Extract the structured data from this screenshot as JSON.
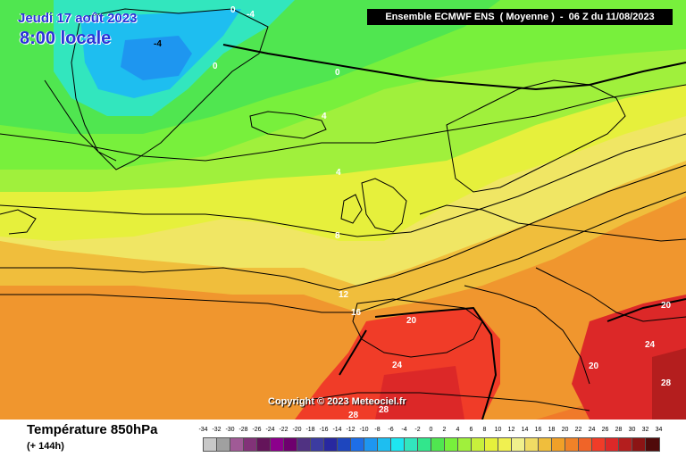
{
  "header": {
    "date_text": "Jeudi 17 août 2023",
    "time_text": "8:00 locale",
    "model_text": "Ensemble ECMWF ENS  ( Moyenne )  -  06 Z du 11/08/2023"
  },
  "map": {
    "copyright_text": "Copyright © 2023 Meteociel.fr",
    "isotherm_labels": [
      {
        "text": "0"
      },
      {
        "text": "0"
      },
      {
        "text": "0"
      },
      {
        "text": "-4"
      },
      {
        "text": "-4"
      },
      {
        "text": "4"
      },
      {
        "text": "4"
      },
      {
        "text": "8"
      },
      {
        "text": "12"
      },
      {
        "text": "16"
      },
      {
        "text": "20"
      },
      {
        "text": "20"
      },
      {
        "text": "20"
      },
      {
        "text": "24"
      },
      {
        "text": "24"
      },
      {
        "text": "28"
      },
      {
        "text": "28"
      },
      {
        "text": "28"
      }
    ]
  },
  "footer": {
    "title": "Température 850hPa",
    "subtitle": "(+ 144h)"
  },
  "legend": {
    "ticks": [
      "-34",
      "-32",
      "-30",
      "-28",
      "-26",
      "-24",
      "-22",
      "-20",
      "-18",
      "-16",
      "-14",
      "-12",
      "-10",
      "-8",
      "-6",
      "-4",
      "-2",
      "0",
      "2",
      "4",
      "6",
      "8",
      "10",
      "12",
      "14",
      "16",
      "18",
      "20",
      "22",
      "24",
      "26",
      "28",
      "30",
      "32",
      "34"
    ],
    "colors": [
      "#c8c8c8",
      "#a0a0a0",
      "#a05a96",
      "#823278",
      "#64145a",
      "#8c008c",
      "#6e006e",
      "#503282",
      "#3c3ca0",
      "#2828a0",
      "#1e46be",
      "#1e6ee6",
      "#1e96f0",
      "#1ebef0",
      "#1ee6f0",
      "#32e6be",
      "#32e68c",
      "#50e650",
      "#78f03c",
      "#a0f03c",
      "#c8f03c",
      "#e6f03c",
      "#f0f050",
      "#f0f08c",
      "#f0dc64",
      "#f0be3c",
      "#f0a028",
      "#f08228",
      "#f06428",
      "#f03c28",
      "#dc2828",
      "#b41e1e",
      "#8c1414",
      "#500a0a"
    ]
  },
  "colors": {
    "title_blue": "#2a33d8",
    "land_outline": "#000000",
    "isotherm_zero": "#000000"
  }
}
